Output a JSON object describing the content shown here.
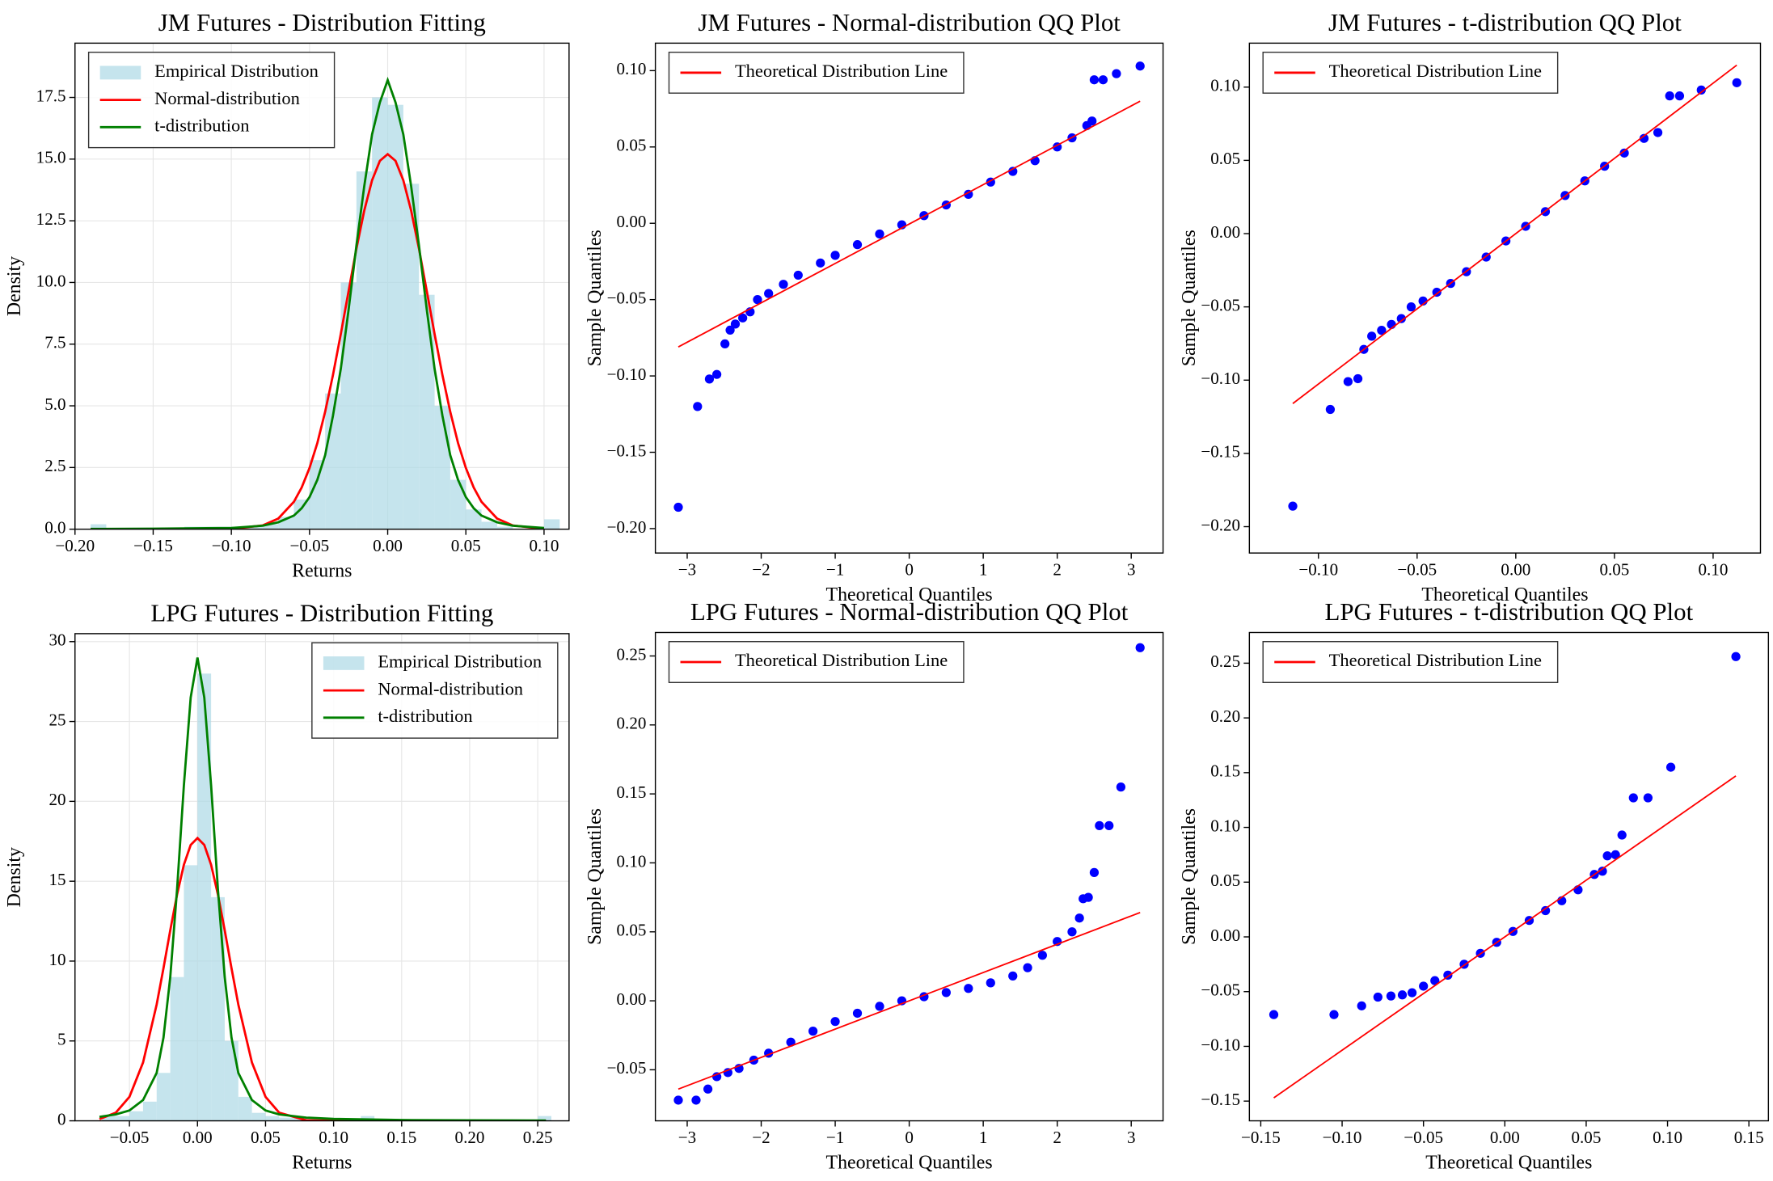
{
  "chart_data": [
    {
      "type": "histogram",
      "title": "JM Futures - Distribution Fitting",
      "xlabel": "Returns",
      "ylabel": "Density",
      "xlim": [
        -0.2,
        0.116
      ],
      "ylim": [
        0,
        19.7
      ],
      "grid": true,
      "legend": "upper left",
      "xticks": [
        {
          "value": -0.2,
          "label": "−0.20"
        },
        {
          "value": -0.15,
          "label": "−0.15"
        },
        {
          "value": -0.1,
          "label": "−0.10"
        },
        {
          "value": -0.05,
          "label": "−0.05"
        },
        {
          "value": 0,
          "label": "0.00"
        },
        0.05,
        {
          "value": 0.1,
          "label": "0.10"
        }
      ],
      "yticks": [
        {
          "value": 0,
          "label": "0.0"
        },
        2.5,
        {
          "value": 5,
          "label": "5.0"
        },
        7.5,
        {
          "value": 10,
          "label": "10.0"
        },
        12.5,
        {
          "value": 15,
          "label": "15.0"
        },
        17.5
      ],
      "histogram": {
        "name": "Empirical Distribution",
        "color": "#add8e6",
        "bins": [
          -0.19,
          -0.18,
          -0.17,
          -0.16,
          -0.15,
          -0.14,
          -0.13,
          -0.12,
          -0.11,
          -0.1,
          -0.09,
          -0.08,
          -0.07,
          -0.06,
          -0.05,
          -0.04,
          -0.03,
          -0.02,
          -0.01,
          0,
          0.01,
          0.02,
          0.03,
          0.04,
          0.05,
          0.06,
          0.07,
          0.08,
          0.09,
          0.1,
          0.11
        ],
        "values": [
          0.2,
          0,
          0,
          0,
          0,
          0,
          0.1,
          0.1,
          0.1,
          0.1,
          0.1,
          0.2,
          0.5,
          1.2,
          2.8,
          5.5,
          10,
          14.5,
          17.5,
          17.2,
          14,
          9.5,
          5,
          2,
          0.8,
          0.3,
          0.1,
          0,
          0.1,
          0.4
        ]
      },
      "series": [
        {
          "name": "Normal-distribution",
          "color": "#ff0000",
          "x": [
            -0.19,
            -0.15,
            -0.1,
            -0.08,
            -0.07,
            -0.06,
            -0.055,
            -0.05,
            -0.045,
            -0.04,
            -0.035,
            -0.03,
            -0.025,
            -0.02,
            -0.015,
            -0.01,
            -0.005,
            0,
            0.005,
            0.01,
            0.015,
            0.02,
            0.025,
            0.03,
            0.035,
            0.04,
            0.045,
            0.05,
            0.055,
            0.06,
            0.07,
            0.08,
            0.1
          ],
          "values": [
            0,
            0,
            0.01,
            0.15,
            0.43,
            1.11,
            1.69,
            2.48,
            3.49,
            4.76,
            6.25,
            7.91,
            9.65,
            11.37,
            12.91,
            14.14,
            14.93,
            15.2,
            14.93,
            14.14,
            12.91,
            11.37,
            9.65,
            7.91,
            6.25,
            4.76,
            3.49,
            2.48,
            1.69,
            1.11,
            0.43,
            0.15,
            0.01
          ]
        },
        {
          "name": "t-distribution",
          "color": "#008000",
          "x": [
            -0.19,
            -0.15,
            -0.1,
            -0.08,
            -0.07,
            -0.06,
            -0.055,
            -0.05,
            -0.045,
            -0.04,
            -0.035,
            -0.03,
            -0.025,
            -0.02,
            -0.015,
            -0.01,
            -0.005,
            0,
            0.005,
            0.01,
            0.015,
            0.02,
            0.025,
            0.03,
            0.035,
            0.04,
            0.045,
            0.05,
            0.055,
            0.06,
            0.07,
            0.08,
            0.1
          ],
          "values": [
            0.01,
            0.02,
            0.05,
            0.14,
            0.28,
            0.55,
            0.85,
            1.3,
            2,
            3,
            4.6,
            6.5,
            8.9,
            11.5,
            13.9,
            16,
            17.3,
            18.2,
            17.3,
            16,
            13.9,
            11.5,
            8.9,
            6.5,
            4.6,
            3,
            2,
            1.3,
            0.85,
            0.55,
            0.28,
            0.14,
            0.05
          ]
        }
      ]
    },
    {
      "type": "scatter",
      "title": "JM Futures - Normal-distribution QQ Plot",
      "xlabel": "Theoretical Quantiles",
      "ylabel": "Sample Quantiles",
      "xlim": [
        -3.43,
        3.43
      ],
      "ylim": [
        -0.216,
        0.118
      ],
      "grid": false,
      "legend": "upper left",
      "xticks": [
        {
          "value": -3,
          "label": "−3"
        },
        {
          "value": -2,
          "label": "−2"
        },
        {
          "value": -1,
          "label": "−1"
        },
        0,
        1,
        2,
        3
      ],
      "yticks": [
        {
          "value": -0.2,
          "label": "−0.20"
        },
        {
          "value": -0.15,
          "label": "−0.15"
        },
        {
          "value": -0.1,
          "label": "−0.10"
        },
        {
          "value": -0.05,
          "label": "−0.05"
        },
        {
          "value": 0,
          "label": "0.00"
        },
        0.05,
        {
          "value": 0.1,
          "label": "0.10"
        }
      ],
      "points": {
        "color": "#0000ff",
        "x": [
          -3.12,
          -2.86,
          -2.7,
          -2.6,
          -2.49,
          -2.42,
          -2.35,
          -2.25,
          -2.15,
          -2.05,
          -1.9,
          -1.7,
          -1.5,
          -1.2,
          -1,
          -0.7,
          -0.4,
          -0.1,
          0.2,
          0.5,
          0.8,
          1.1,
          1.4,
          1.7,
          2,
          2.2,
          2.4,
          2.47,
          2.5,
          2.62,
          2.8,
          3.12
        ],
        "values": [
          -0.186,
          -0.12,
          -0.102,
          -0.099,
          -0.079,
          -0.07,
          -0.066,
          -0.062,
          -0.058,
          -0.05,
          -0.046,
          -0.04,
          -0.034,
          -0.026,
          -0.021,
          -0.014,
          -0.007,
          -0.001,
          0.005,
          0.012,
          0.019,
          0.027,
          0.034,
          0.041,
          0.05,
          0.056,
          0.064,
          0.067,
          0.094,
          0.094,
          0.098,
          0.103
        ]
      },
      "line": {
        "name": "Theoretical Distribution Line",
        "color": "#ff0000",
        "x": [
          -3.12,
          3.12
        ],
        "values": [
          -0.081,
          0.08
        ]
      }
    },
    {
      "type": "scatter",
      "title": "JM Futures - t-distribution QQ Plot",
      "xlabel": "Theoretical Quantiles",
      "ylabel": "Sample Quantiles",
      "xlim": [
        -0.135,
        0.124
      ],
      "ylim": [
        -0.218,
        0.13
      ],
      "grid": false,
      "legend": "upper left",
      "xticks": [
        {
          "value": -0.1,
          "label": "−0.10"
        },
        {
          "value": -0.05,
          "label": "−0.05"
        },
        {
          "value": 0,
          "label": "0.00"
        },
        0.05,
        {
          "value": 0.1,
          "label": "0.10"
        }
      ],
      "yticks": [
        {
          "value": -0.2,
          "label": "−0.20"
        },
        {
          "value": -0.15,
          "label": "−0.15"
        },
        {
          "value": -0.1,
          "label": "−0.10"
        },
        {
          "value": -0.05,
          "label": "−0.05"
        },
        {
          "value": 0,
          "label": "0.00"
        },
        0.05,
        {
          "value": 0.1,
          "label": "0.10"
        }
      ],
      "points": {
        "color": "#0000ff",
        "x": [
          -0.113,
          -0.094,
          -0.085,
          -0.08,
          -0.077,
          -0.073,
          -0.068,
          -0.063,
          -0.058,
          -0.053,
          -0.047,
          -0.04,
          -0.033,
          -0.025,
          -0.015,
          -0.005,
          0.005,
          0.015,
          0.025,
          0.035,
          0.045,
          0.055,
          0.065,
          0.072,
          0.078,
          0.083,
          0.094,
          0.112
        ],
        "values": [
          -0.186,
          -0.12,
          -0.101,
          -0.099,
          -0.079,
          -0.07,
          -0.066,
          -0.062,
          -0.058,
          -0.05,
          -0.046,
          -0.04,
          -0.034,
          -0.026,
          -0.016,
          -0.005,
          0.005,
          0.015,
          0.026,
          0.036,
          0.046,
          0.055,
          0.065,
          0.069,
          0.094,
          0.094,
          0.098,
          0.103
        ]
      },
      "line": {
        "name": "Theoretical Distribution Line",
        "color": "#ff0000",
        "x": [
          -0.113,
          0.112
        ],
        "values": [
          -0.116,
          0.115
        ]
      }
    },
    {
      "type": "histogram",
      "title": "LPG Futures - Distribution Fitting",
      "xlabel": "Returns",
      "ylabel": "Density",
      "xlim": [
        -0.09,
        0.273
      ],
      "ylim": [
        0,
        30.5
      ],
      "grid": true,
      "legend": "upper right",
      "xticks": [
        {
          "value": -0.05,
          "label": "−0.05"
        },
        {
          "value": 0,
          "label": "0.00"
        },
        0.05,
        {
          "value": 0.1,
          "label": "0.10"
        },
        0.15,
        {
          "value": 0.2,
          "label": "0.20"
        },
        0.25
      ],
      "yticks": [
        0,
        5,
        10,
        15,
        20,
        25,
        30
      ],
      "histogram": {
        "name": "Empirical Distribution",
        "color": "#add8e6",
        "bins": [
          -0.07,
          -0.06,
          -0.05,
          -0.04,
          -0.03,
          -0.02,
          -0.01,
          0,
          0.01,
          0.02,
          0.03,
          0.04,
          0.05,
          0.06,
          0.07,
          0.08,
          0.09,
          0.1,
          0.11,
          0.12,
          0.13,
          0.14,
          0.15,
          0.16,
          0.17,
          0.18,
          0.19,
          0.2,
          0.21,
          0.22,
          0.23,
          0.24,
          0.25,
          0.26
        ],
        "values": [
          0.3,
          0.3,
          0.6,
          1.2,
          3,
          9,
          16,
          28,
          14,
          5,
          1.5,
          0.5,
          0.3,
          0.2,
          0.2,
          0.1,
          0.1,
          0,
          0,
          0.3,
          0.1,
          0.1,
          0,
          0,
          0,
          0,
          0,
          0,
          0,
          0,
          0,
          0,
          0.3
        ]
      },
      "series": [
        {
          "name": "Normal-distribution",
          "color": "#ff0000",
          "x": [
            -0.072,
            -0.06,
            -0.05,
            -0.04,
            -0.03,
            -0.025,
            -0.02,
            -0.015,
            -0.01,
            -0.005,
            0,
            0.005,
            0.01,
            0.015,
            0.02,
            0.025,
            0.03,
            0.04,
            0.05,
            0.06,
            0.08,
            0.1,
            0.15,
            0.2,
            0.256
          ],
          "values": [
            0.11,
            0.51,
            1.5,
            3.65,
            7.28,
            9.55,
            11.93,
            14.17,
            16.03,
            17.27,
            17.7,
            17.27,
            16.03,
            14.17,
            11.93,
            9.55,
            7.28,
            3.65,
            1.5,
            0.51,
            0.03,
            0,
            0,
            0,
            0
          ]
        },
        {
          "name": "t-distribution",
          "color": "#008000",
          "x": [
            -0.072,
            -0.06,
            -0.05,
            -0.04,
            -0.03,
            -0.025,
            -0.02,
            -0.015,
            -0.01,
            -0.005,
            0,
            0.005,
            0.01,
            0.015,
            0.02,
            0.025,
            0.03,
            0.04,
            0.05,
            0.06,
            0.08,
            0.1,
            0.15,
            0.2,
            0.256
          ],
          "values": [
            0.25,
            0.4,
            0.65,
            1.3,
            3,
            5.2,
            9,
            14.5,
            21,
            26.5,
            29,
            26.5,
            21,
            14.5,
            9,
            5.2,
            3,
            1.3,
            0.65,
            0.4,
            0.2,
            0.12,
            0.05,
            0.03,
            0.02
          ]
        }
      ]
    },
    {
      "type": "scatter",
      "title": "LPG Futures - Normal-distribution QQ Plot",
      "xlabel": "Theoretical Quantiles",
      "ylabel": "Sample Quantiles",
      "xlim": [
        -3.43,
        3.43
      ],
      "ylim": [
        -0.087,
        0.267
      ],
      "grid": false,
      "legend": "upper left",
      "xticks": [
        {
          "value": -3,
          "label": "−3"
        },
        {
          "value": -2,
          "label": "−2"
        },
        {
          "value": -1,
          "label": "−1"
        },
        0,
        1,
        2,
        3
      ],
      "yticks": [
        {
          "value": -0.05,
          "label": "−0.05"
        },
        {
          "value": 0,
          "label": "0.00"
        },
        0.05,
        {
          "value": 0.1,
          "label": "0.10"
        },
        0.15,
        {
          "value": 0.2,
          "label": "0.20"
        },
        0.25
      ],
      "points": {
        "color": "#0000ff",
        "x": [
          -3.12,
          -2.88,
          -2.72,
          -2.6,
          -2.45,
          -2.3,
          -2.1,
          -1.9,
          -1.6,
          -1.3,
          -1,
          -0.7,
          -0.4,
          -0.1,
          0.2,
          0.5,
          0.8,
          1.1,
          1.4,
          1.6,
          1.8,
          2,
          2.2,
          2.3,
          2.35,
          2.42,
          2.5,
          2.57,
          2.7,
          2.86,
          3.12
        ],
        "values": [
          -0.072,
          -0.072,
          -0.064,
          -0.055,
          -0.052,
          -0.049,
          -0.043,
          -0.038,
          -0.03,
          -0.022,
          -0.015,
          -0.009,
          -0.004,
          0,
          0.003,
          0.006,
          0.009,
          0.013,
          0.018,
          0.024,
          0.033,
          0.043,
          0.05,
          0.06,
          0.074,
          0.075,
          0.093,
          0.127,
          0.127,
          0.155,
          0.256
        ]
      },
      "line": {
        "name": "Theoretical Distribution Line",
        "color": "#ff0000",
        "x": [
          -3.12,
          3.12
        ],
        "values": [
          -0.064,
          0.064
        ]
      }
    },
    {
      "type": "scatter",
      "title": "LPG Futures - t-distribution QQ Plot",
      "xlabel": "Theoretical Quantiles",
      "ylabel": "Sample Quantiles",
      "xlim": [
        -0.157,
        0.162
      ],
      "ylim": [
        -0.168,
        0.278
      ],
      "grid": false,
      "legend": "upper left",
      "xticks": [
        {
          "value": -0.15,
          "label": "−0.15"
        },
        {
          "value": -0.1,
          "label": "−0.10"
        },
        {
          "value": -0.05,
          "label": "−0.05"
        },
        {
          "value": 0,
          "label": "0.00"
        },
        0.05,
        {
          "value": 0.1,
          "label": "0.10"
        },
        0.15
      ],
      "yticks": [
        {
          "value": -0.15,
          "label": "−0.15"
        },
        {
          "value": -0.1,
          "label": "−0.10"
        },
        {
          "value": -0.05,
          "label": "−0.05"
        },
        {
          "value": 0,
          "label": "0.00"
        },
        0.05,
        {
          "value": 0.1,
          "label": "0.10"
        },
        0.15,
        {
          "value": 0.2,
          "label": "0.20"
        },
        0.25
      ],
      "points": {
        "color": "#0000ff",
        "x": [
          -0.142,
          -0.105,
          -0.088,
          -0.078,
          -0.07,
          -0.063,
          -0.057,
          -0.05,
          -0.043,
          -0.035,
          -0.025,
          -0.015,
          -0.005,
          0.005,
          0.015,
          0.025,
          0.035,
          0.045,
          0.055,
          0.06,
          0.063,
          0.068,
          0.072,
          0.079,
          0.088,
          0.102,
          0.142
        ],
        "values": [
          -0.071,
          -0.071,
          -0.063,
          -0.055,
          -0.054,
          -0.053,
          -0.051,
          -0.045,
          -0.04,
          -0.035,
          -0.025,
          -0.015,
          -0.005,
          0.005,
          0.015,
          0.024,
          0.033,
          0.043,
          0.057,
          0.06,
          0.074,
          0.075,
          0.093,
          0.127,
          0.127,
          0.155,
          0.256
        ]
      },
      "line": {
        "name": "Theoretical Distribution Line",
        "color": "#ff0000",
        "x": [
          -0.142,
          0.142
        ],
        "values": [
          -0.147,
          0.147
        ]
      }
    }
  ]
}
